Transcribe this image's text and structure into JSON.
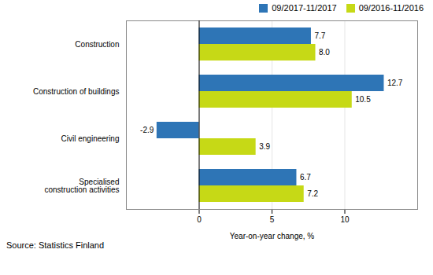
{
  "chart_data": {
    "type": "bar",
    "orientation": "horizontal",
    "categories": [
      "Construction",
      "Construction of buildings",
      "Civil engineering",
      "Specialised\nconstruction activities"
    ],
    "series": [
      {
        "name": "09/2017-11/2017",
        "color": "#2E75B6",
        "values": [
          7.7,
          12.7,
          -2.9,
          6.7
        ],
        "value_labels": [
          "7.7",
          "12.7",
          "-2.9",
          "6.7"
        ]
      },
      {
        "name": "09/2016-11/2016",
        "color": "#C6D916",
        "values": [
          8.0,
          10.5,
          3.9,
          7.2
        ],
        "value_labels": [
          "8.0",
          "10.5",
          "3.9",
          "7.2"
        ]
      }
    ],
    "xlabel": "Year-on-year change, %",
    "xlim": [
      -5,
      15
    ],
    "xticks": [
      0,
      5,
      10
    ],
    "grid": true,
    "legend": "upper right",
    "data_labels": true,
    "annotations": [
      "Source: Statistics Finland"
    ]
  }
}
